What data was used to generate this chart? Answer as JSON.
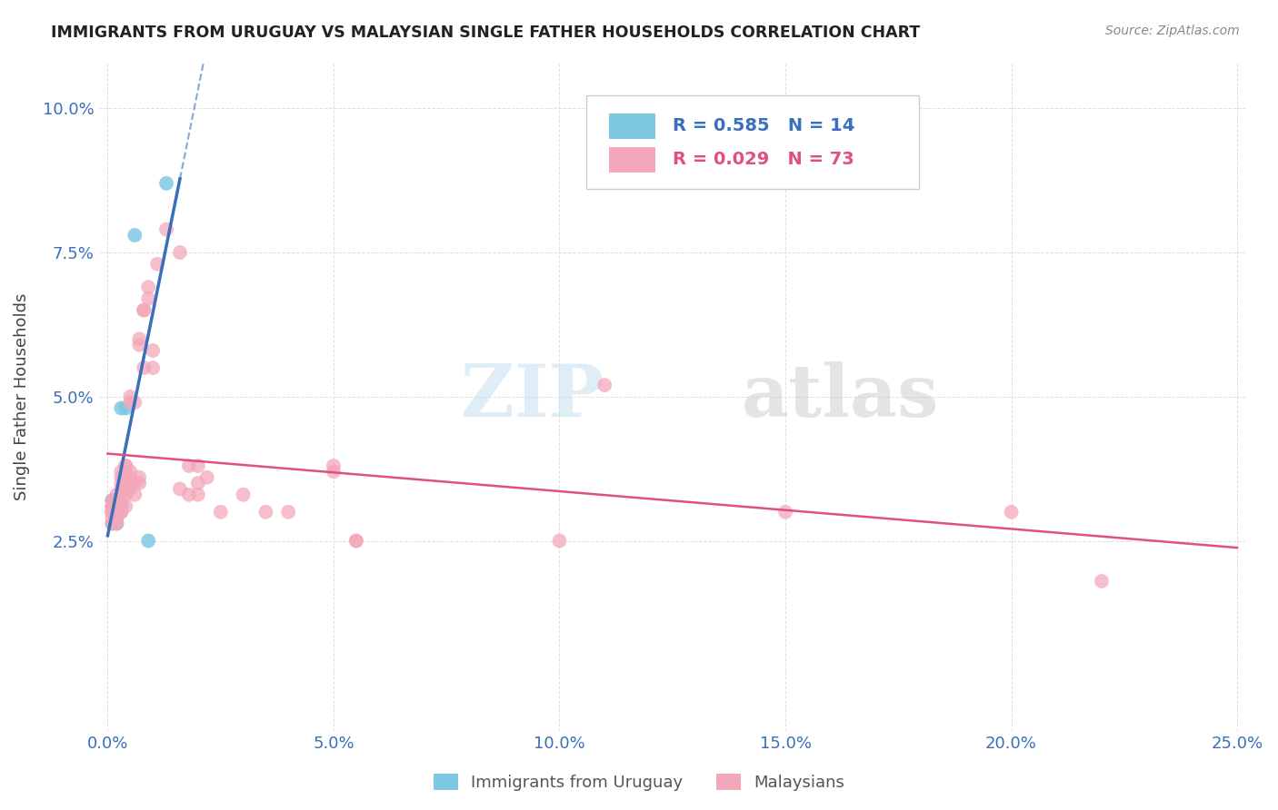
{
  "title": "IMMIGRANTS FROM URUGUAY VS MALAYSIAN SINGLE FATHER HOUSEHOLDS CORRELATION CHART",
  "source": "Source: ZipAtlas.com",
  "ylabel": "Single Father Households",
  "xlim": [
    -0.002,
    0.252
  ],
  "ylim": [
    -0.008,
    0.108
  ],
  "xticks": [
    0.0,
    0.05,
    0.1,
    0.15,
    0.2,
    0.25
  ],
  "xtick_labels": [
    "0.0%",
    "5.0%",
    "10.0%",
    "15.0%",
    "20.0%",
    "25.0%"
  ],
  "yticks": [
    0.025,
    0.05,
    0.075,
    0.1
  ],
  "ytick_labels": [
    "2.5%",
    "5.0%",
    "7.5%",
    "10.0%"
  ],
  "legend_label_uru": "R = 0.585   N = 14",
  "legend_label_mal": "R = 0.029   N = 73",
  "legend_color_uru": "#3a6fbd",
  "legend_color_mal": "#e05080",
  "uruguay_color": "#7ec8e3",
  "malaysia_color": "#f4a7b9",
  "trendline_uruguay_color": "#3a6fbd",
  "trendline_malaysia_color": "#e05080",
  "watermark_text": "ZIP",
  "watermark_text2": "atlas",
  "background_color": "#ffffff",
  "grid_color": "#e0e0e0",
  "tick_color": "#3a6fbd",
  "title_color": "#222222",
  "source_color": "#888888",
  "ylabel_color": "#444444",
  "bottom_label_uru": "Immigrants from Uruguay",
  "bottom_label_mal": "Malaysians",
  "uruguay_points": [
    [
      0.001,
      0.031
    ],
    [
      0.001,
      0.028
    ],
    [
      0.001,
      0.03
    ],
    [
      0.001,
      0.032
    ],
    [
      0.002,
      0.031
    ],
    [
      0.002,
      0.029
    ],
    [
      0.002,
      0.03
    ],
    [
      0.002,
      0.028
    ],
    [
      0.003,
      0.031
    ],
    [
      0.003,
      0.048
    ],
    [
      0.004,
      0.048
    ],
    [
      0.006,
      0.078
    ],
    [
      0.009,
      0.025
    ],
    [
      0.013,
      0.087
    ]
  ],
  "malaysia_points": [
    [
      0.001,
      0.03
    ],
    [
      0.001,
      0.029
    ],
    [
      0.001,
      0.031
    ],
    [
      0.001,
      0.028
    ],
    [
      0.001,
      0.032
    ],
    [
      0.001,
      0.03
    ],
    [
      0.001,
      0.031
    ],
    [
      0.002,
      0.033
    ],
    [
      0.002,
      0.031
    ],
    [
      0.002,
      0.03
    ],
    [
      0.002,
      0.03
    ],
    [
      0.002,
      0.029
    ],
    [
      0.002,
      0.028
    ],
    [
      0.002,
      0.032
    ],
    [
      0.003,
      0.037
    ],
    [
      0.003,
      0.035
    ],
    [
      0.003,
      0.034
    ],
    [
      0.003,
      0.033
    ],
    [
      0.003,
      0.031
    ],
    [
      0.003,
      0.03
    ],
    [
      0.003,
      0.03
    ],
    [
      0.003,
      0.036
    ],
    [
      0.004,
      0.038
    ],
    [
      0.004,
      0.036
    ],
    [
      0.004,
      0.035
    ],
    [
      0.004,
      0.034
    ],
    [
      0.004,
      0.036
    ],
    [
      0.004,
      0.033
    ],
    [
      0.004,
      0.031
    ],
    [
      0.004,
      0.038
    ],
    [
      0.005,
      0.036
    ],
    [
      0.005,
      0.034
    ],
    [
      0.005,
      0.05
    ],
    [
      0.005,
      0.049
    ],
    [
      0.005,
      0.037
    ],
    [
      0.005,
      0.035
    ],
    [
      0.006,
      0.033
    ],
    [
      0.006,
      0.049
    ],
    [
      0.006,
      0.035
    ],
    [
      0.007,
      0.06
    ],
    [
      0.007,
      0.059
    ],
    [
      0.007,
      0.036
    ],
    [
      0.007,
      0.035
    ],
    [
      0.008,
      0.065
    ],
    [
      0.008,
      0.065
    ],
    [
      0.008,
      0.055
    ],
    [
      0.009,
      0.067
    ],
    [
      0.009,
      0.069
    ],
    [
      0.01,
      0.055
    ],
    [
      0.01,
      0.058
    ],
    [
      0.011,
      0.073
    ],
    [
      0.013,
      0.079
    ],
    [
      0.016,
      0.075
    ],
    [
      0.016,
      0.034
    ],
    [
      0.018,
      0.033
    ],
    [
      0.018,
      0.038
    ],
    [
      0.02,
      0.033
    ],
    [
      0.02,
      0.035
    ],
    [
      0.02,
      0.038
    ],
    [
      0.022,
      0.036
    ],
    [
      0.025,
      0.03
    ],
    [
      0.03,
      0.033
    ],
    [
      0.035,
      0.03
    ],
    [
      0.04,
      0.03
    ],
    [
      0.05,
      0.037
    ],
    [
      0.05,
      0.038
    ],
    [
      0.055,
      0.025
    ],
    [
      0.055,
      0.025
    ],
    [
      0.1,
      0.025
    ],
    [
      0.11,
      0.052
    ],
    [
      0.15,
      0.03
    ],
    [
      0.2,
      0.03
    ],
    [
      0.22,
      0.018
    ]
  ]
}
